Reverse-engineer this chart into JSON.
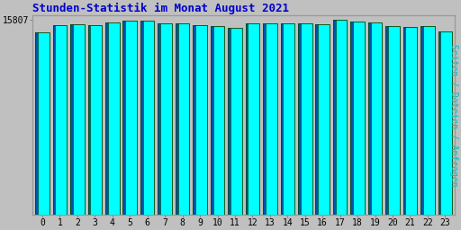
{
  "title": "Stunden-Statistik im Monat August 2021",
  "ylabel": "Seiten / Dateien / Anfragen",
  "categories": [
    0,
    1,
    2,
    3,
    4,
    5,
    6,
    7,
    8,
    9,
    10,
    11,
    12,
    13,
    14,
    15,
    16,
    17,
    18,
    19,
    20,
    21,
    22,
    23
  ],
  "values": [
    14800,
    15400,
    15450,
    15430,
    15650,
    15780,
    15750,
    15550,
    15520,
    15430,
    15300,
    15200,
    15580,
    15560,
    15570,
    15530,
    15480,
    15807,
    15720,
    15620,
    15350,
    15280,
    15290,
    14900
  ],
  "ytick_label": "15807",
  "ytick_value": 15807,
  "ymin": 0,
  "ymax": 16200,
  "bar_color": "#00FFFF",
  "bar_shadow_color": "#0055AA",
  "bar_edge_color": "#004400",
  "bg_color": "#C0C0C0",
  "plot_bg_color": "#C0C0C0",
  "title_color": "#0000CC",
  "ylabel_color": "#00BBBB",
  "tick_color": "#000000",
  "title_fontsize": 9,
  "ylabel_fontsize": 7,
  "tick_fontsize": 7,
  "bar_width": 0.8,
  "figsize": [
    5.12,
    2.56
  ],
  "dpi": 100
}
